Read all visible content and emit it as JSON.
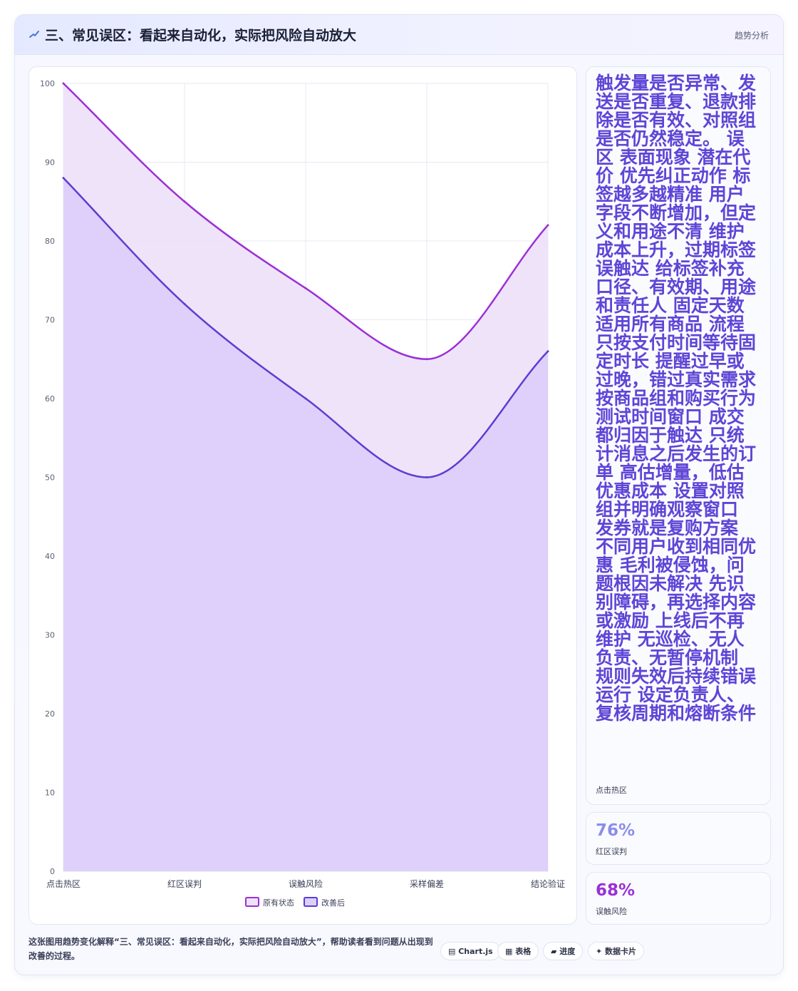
{
  "header": {
    "title": "三、常见误区：看起来自动化，实际把风险自动放大",
    "tag": "趋势分析",
    "icon": "chart-line-icon"
  },
  "colors": {
    "series1_line": "#9b30d6",
    "series1_fill": "#eee2fa",
    "series2_line": "#5a3fd0",
    "series2_fill": "#dccffa",
    "stat_accent_1": "#5f45d6",
    "stat_accent_2": "#8a8ee8",
    "stat_accent_3": "#9b30d6"
  },
  "chart_data": {
    "type": "area",
    "categories": [
      "点击热区",
      "红区误判",
      "误触风险",
      "采样偏差",
      "结论验证"
    ],
    "series": [
      {
        "name": "原有状态",
        "values": [
          100,
          85,
          74,
          65,
          82
        ]
      },
      {
        "name": "改善后",
        "values": [
          88,
          72,
          60,
          50,
          66
        ]
      }
    ],
    "ylim": [
      0,
      100
    ],
    "yticks": [
      0,
      10,
      20,
      30,
      40,
      50,
      60,
      70,
      80,
      90,
      100
    ],
    "grid": true,
    "legend": "bottom",
    "title": "",
    "xlabel": "",
    "ylabel": ""
  },
  "stats": [
    {
      "value": "触发量是否异常、发送是否重复、退款排除是否有效、对照组是否仍然稳定。 误区 表面现象 潜在代价 优先纠正动作 标签越多越精准 用户字段不断增加，但定义和用途不清 维护成本上升，过期标签误触达 给标签补充口径、有效期、用途和责任人 固定天数适用所有商品 流程只按支付时间等待固定时长 提醒过早或过晚，错过真实需求 按商品组和购买行为测试时间窗口 成交都归因于触达 只统计消息之后发生的订单 高估增量，低估优惠成本 设置对照组并明确观察窗口 发券就是复购方案 不同用户收到相同优惠 毛利被侵蚀，问题根因未解决 先识别障碍，再选择内容或激励 上线后不再维护 无巡检、无人负责、无暂停机制 规则失效后持续错误运行 设定负责人、复核周期和熔断条件",
      "label": "点击热区"
    },
    {
      "value": "76%",
      "label": "红区误判"
    },
    {
      "value": "68%",
      "label": "误触风险"
    }
  ],
  "footer": {
    "text": "这张图用趋势变化解释“三、常见误区：看起来自动化，实际把风险自动放大”，帮助读者看到问题从出现到改善的过程。",
    "chips": [
      {
        "icon": "table-icon",
        "label": "▤ Chart.js"
      },
      {
        "icon": "grid-icon",
        "label": "▦ 表格"
      },
      {
        "icon": "progress-icon",
        "label": "▰ 进度"
      },
      {
        "icon": "sparkle-icon",
        "label": "✦ 数据卡片"
      }
    ]
  }
}
